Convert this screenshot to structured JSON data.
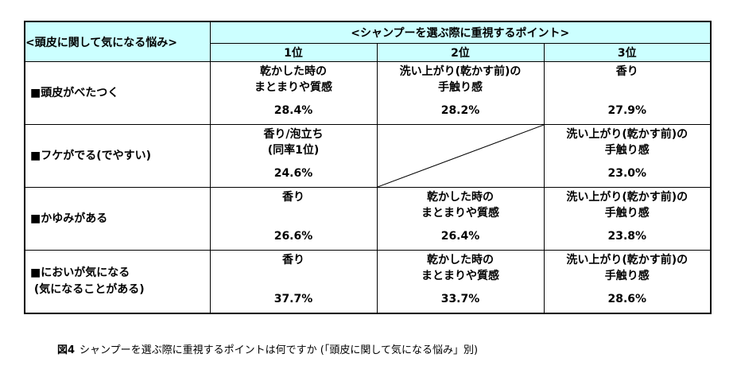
{
  "table": {
    "concern_header": "<頭皮に関して気になる悩み>",
    "group_header": "<シャンプーを選ぶ際に重視するポイント>",
    "rank_headers": [
      "1位",
      "2位",
      "3位"
    ],
    "rows": [
      {
        "label": "■頭皮がべたつく",
        "cells": [
          {
            "text": "乾かした時の\nまとまりや質感",
            "pct": "28.4%"
          },
          {
            "text": "洗い上がり(乾かす前)の\n手触り感",
            "pct": "28.2%"
          },
          {
            "text": "香り",
            "pct": "27.9%"
          }
        ]
      },
      {
        "label": "■フケがでる(でやすい)",
        "cells": [
          {
            "text": "香り/泡立ち\n(同率1位)",
            "pct": "24.6%"
          },
          {
            "text": "",
            "pct": "",
            "empty": true
          },
          {
            "text": "洗い上がり(乾かす前)の\n手触り感",
            "pct": "23.0%"
          }
        ]
      },
      {
        "label": "■かゆみがある",
        "cells": [
          {
            "text": "香り",
            "pct": "26.6%"
          },
          {
            "text": "乾かした時の\nまとまりや質感",
            "pct": "26.4%"
          },
          {
            "text": "洗い上がり(乾かす前)の\n手触り感",
            "pct": "23.8%"
          }
        ]
      },
      {
        "label": "■においが気になる\n (気になることがある)",
        "cells": [
          {
            "text": "香り",
            "pct": "37.7%"
          },
          {
            "text": "乾かした時の\nまとまりや質感",
            "pct": "33.7%"
          },
          {
            "text": "洗い上がり(乾かす前)の\n手触り感",
            "pct": "28.6%"
          }
        ]
      }
    ]
  },
  "caption": {
    "figure_label": "図4",
    "text": "シャンプーを選ぶ際に重視するポイントは何ですか (「頭皮に関して気になる悩み」別)"
  },
  "colors": {
    "header_bg": "#ccffff",
    "border": "#000000"
  }
}
